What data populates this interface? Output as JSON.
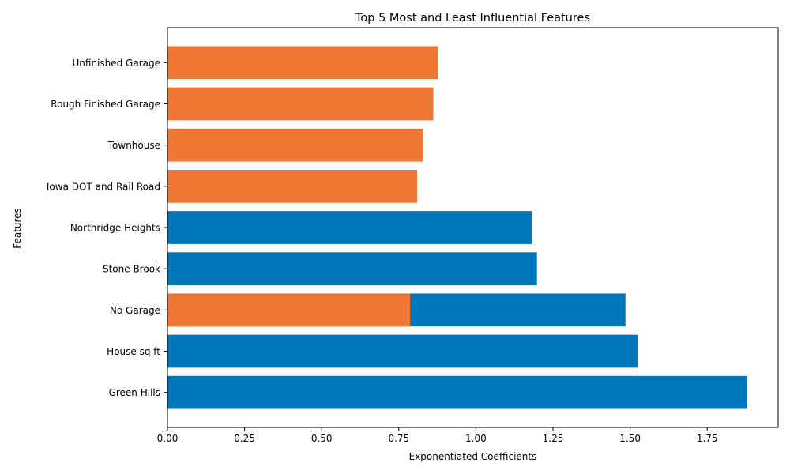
{
  "chart_data": {
    "type": "bar",
    "orientation": "horizontal",
    "title": "Top 5 Most and Least Influential Features",
    "xlabel": "Exponentiated Coefficients",
    "ylabel": "Features",
    "xlim": [
      0,
      1.98
    ],
    "xticks": [
      "0.00",
      "0.25",
      "0.50",
      "0.75",
      "1.00",
      "1.25",
      "1.50",
      "1.75"
    ],
    "xtick_values": [
      0,
      0.25,
      0.5,
      0.75,
      1.0,
      1.25,
      1.5,
      1.75
    ],
    "categories": [
      "Green Hills",
      "House sq ft",
      "No Garage",
      "Stone Brook",
      "Northridge Heights",
      "Iowa DOT and Rail Road",
      "Townhouse",
      "Rough Finished Garage",
      "Unfinished Garage"
    ],
    "grid": false,
    "legend": "none",
    "series": [
      {
        "color": "#0077bb",
        "values": [
          1.88,
          1.525,
          1.485,
          1.198,
          1.183,
          null,
          null,
          null,
          null
        ]
      },
      {
        "color": "#ee7733",
        "values": [
          null,
          null,
          0.787,
          null,
          null,
          0.81,
          0.83,
          0.862,
          0.877
        ]
      }
    ]
  }
}
